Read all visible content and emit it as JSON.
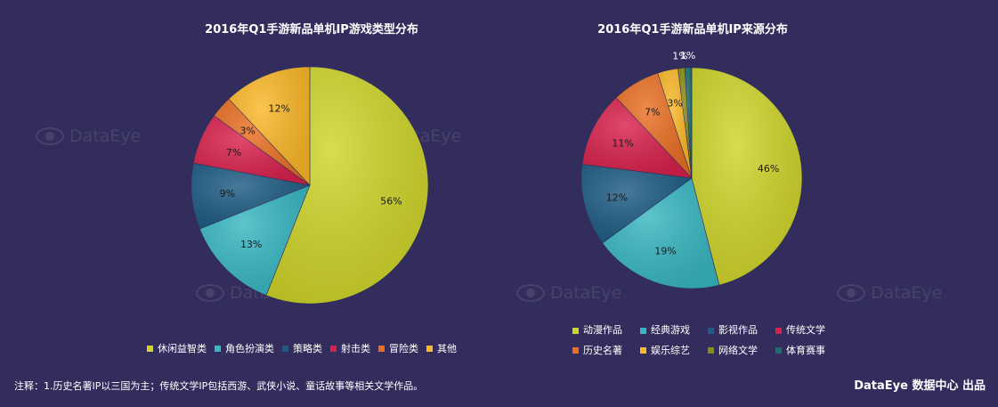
{
  "chart_data": [
    {
      "type": "pie",
      "title": "2016年Q1手游新品单机IP游戏类型分布",
      "slices": [
        {
          "label": "休闲益智类",
          "value": 56,
          "display": "56%",
          "color": "#cfd52a"
        },
        {
          "label": "角色扮演类",
          "value": 13,
          "display": "13%",
          "color": "#38b7c2"
        },
        {
          "label": "策略类",
          "value": 9,
          "display": "9%",
          "color": "#1e5c84"
        },
        {
          "label": "射击类",
          "value": 7,
          "display": "7%",
          "color": "#d9214c"
        },
        {
          "label": "冒险类",
          "value": 3,
          "display": "3%",
          "color": "#ea7024"
        },
        {
          "label": "其他",
          "value": 12,
          "display": "12%",
          "color": "#fbb828"
        }
      ],
      "legend_position": "bottom"
    },
    {
      "type": "pie",
      "title": "2016年Q1手游新品单机IP来源分布",
      "slices": [
        {
          "label": "动漫作品",
          "value": 46,
          "display": "46%",
          "color": "#cfd52a"
        },
        {
          "label": "经典游戏",
          "value": 19,
          "display": "19%",
          "color": "#38b7c2"
        },
        {
          "label": "影视作品",
          "value": 12,
          "display": "12%",
          "color": "#1e5c84"
        },
        {
          "label": "传统文学",
          "value": 11,
          "display": "11%",
          "color": "#d9214c"
        },
        {
          "label": "历史名著",
          "value": 7,
          "display": "7%",
          "color": "#ea7024"
        },
        {
          "label": "娱乐综艺",
          "value": 3,
          "display": "3%",
          "color": "#fbb828"
        },
        {
          "label": "网络文学",
          "value": 1,
          "display": "1%",
          "color": "#8a8c14"
        },
        {
          "label": "体育赛事",
          "value": 1,
          "display": "1%",
          "color": "#1f6e6e"
        }
      ],
      "legend_position": "bottom"
    }
  ],
  "watermark_text": "DataEye",
  "footnote": "注释：1.历史名著IP以三国为主；传统文学IP包括西游、武侠小说、童话故事等相关文学作品。",
  "credit": "DataEye 数据中心 出品",
  "colors": {
    "background": "#322d5c"
  }
}
